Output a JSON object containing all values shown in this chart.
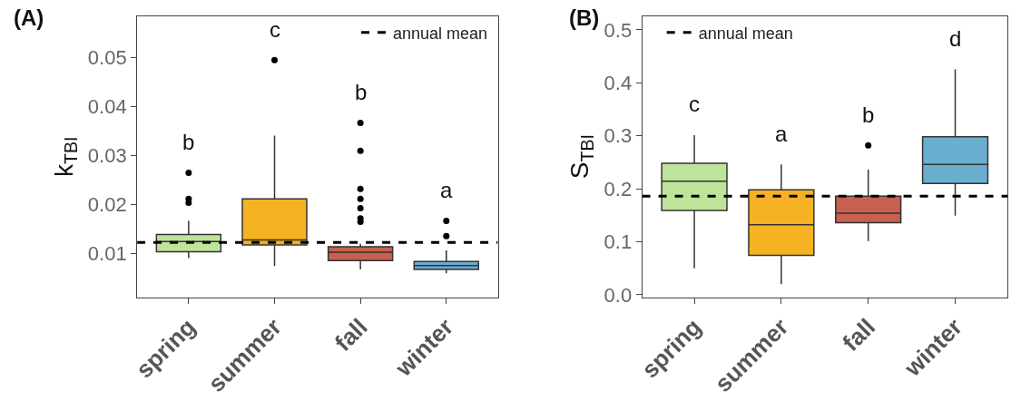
{
  "chart_data": [
    {
      "type": "box",
      "title": "(A)",
      "ylabel": "k$_{TBI}$",
      "categories": [
        "spring",
        "summer",
        "fall",
        "winter"
      ],
      "colors": [
        "#bfe39b",
        "#f5b223",
        "#c6604f",
        "#6aaed0"
      ],
      "boxes": [
        {
          "low": 0.0091,
          "q1": 0.0104,
          "median": 0.0125,
          "q3": 0.0139,
          "high": 0.0167,
          "outliers": [
            0.0265,
            0.0212,
            0.0204
          ]
        },
        {
          "low": 0.0075,
          "q1": 0.0118,
          "median": 0.0128,
          "q3": 0.0212,
          "high": 0.0341,
          "outliers": [
            0.0495
          ]
        },
        {
          "low": 0.0068,
          "q1": 0.0086,
          "median": 0.0103,
          "q3": 0.0114,
          "high": 0.012,
          "outliers": [
            0.0367,
            0.031,
            0.0232,
            0.0212,
            0.0193,
            0.0172,
            0.0165
          ]
        },
        {
          "low": 0.006,
          "q1": 0.0068,
          "median": 0.0076,
          "q3": 0.0084,
          "high": 0.0107,
          "outliers": [
            0.0167,
            0.0136
          ]
        }
      ],
      "ylim": [
        0.0011,
        0.0585
      ],
      "yticks": [
        0.01,
        0.02,
        0.03,
        0.04,
        0.05
      ],
      "legend": "top right",
      "ref_lines": [
        {
          "axis": "y",
          "value": 0.0123,
          "label": "annual mean",
          "color": "#000000",
          "line_style": "dashed"
        }
      ],
      "annotations": [
        "b",
        "c",
        "b",
        "a"
      ]
    },
    {
      "type": "box",
      "title": "(B)",
      "ylabel": "S$_{TBI}$",
      "categories": [
        "spring",
        "summer",
        "fall",
        "winter"
      ],
      "colors": [
        "#bfe39b",
        "#f5b223",
        "#c6604f",
        "#6aaed0"
      ],
      "boxes": [
        {
          "low": 0.05,
          "q1": 0.159,
          "median": 0.214,
          "q3": 0.248,
          "high": 0.301
        },
        {
          "low": 0.02,
          "q1": 0.074,
          "median": 0.132,
          "q3": 0.198,
          "high": 0.246
        },
        {
          "low": 0.101,
          "q1": 0.136,
          "median": 0.154,
          "q3": 0.186,
          "high": 0.236,
          "outliers": [
            0.282
          ]
        },
        {
          "low": 0.149,
          "q1": 0.21,
          "median": 0.246,
          "q3": 0.298,
          "high": 0.425
        }
      ],
      "ylim": [
        -0.005,
        0.526
      ],
      "yticks": [
        {
          "value": 0.0,
          "label": "0.0"
        },
        0.1,
        0.2,
        0.3,
        0.4,
        0.5
      ],
      "legend": "top left",
      "ref_lines": [
        {
          "axis": "y",
          "value": 0.186,
          "label": "annual mean",
          "color": "#000000",
          "line_style": "dashed"
        }
      ],
      "annotations": [
        "c",
        "a",
        "b",
        "d"
      ]
    }
  ]
}
